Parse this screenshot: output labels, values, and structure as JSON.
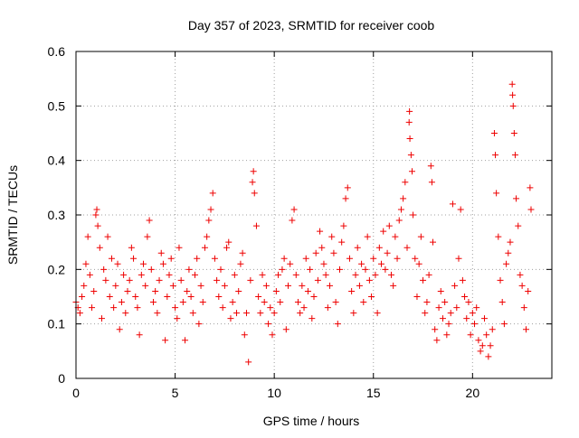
{
  "chart_data": {
    "type": "scatter",
    "title": "Day 357 of 2023, SRMTID for receiver coob",
    "xlabel": "GPS time / hours",
    "ylabel": "SRMTID / TECUs",
    "xlim": [
      0,
      24
    ],
    "ylim": [
      0,
      0.6
    ],
    "x_ticks": [
      0,
      5,
      10,
      15,
      20
    ],
    "x_tick_labels": [
      "0",
      "5",
      "10",
      "15",
      "20"
    ],
    "y_ticks": [
      0,
      0.1,
      0.2,
      0.3,
      0.4,
      0.5,
      0.6
    ],
    "y_tick_labels": [
      "0",
      "0.1",
      "0.2",
      "0.3",
      "0.4",
      "0.5",
      "0.6"
    ],
    "grid": true,
    "marker": "+",
    "color": "#ee0000",
    "series": [
      {
        "name": "SRMTID",
        "points": [
          [
            0.0,
            0.14
          ],
          [
            0.1,
            0.13
          ],
          [
            0.2,
            0.12
          ],
          [
            0.3,
            0.15
          ],
          [
            0.4,
            0.17
          ],
          [
            0.5,
            0.21
          ],
          [
            0.6,
            0.26
          ],
          [
            0.7,
            0.19
          ],
          [
            0.8,
            0.13
          ],
          [
            0.9,
            0.16
          ],
          [
            1.0,
            0.3
          ],
          [
            1.05,
            0.31
          ],
          [
            1.1,
            0.28
          ],
          [
            1.2,
            0.24
          ],
          [
            1.3,
            0.11
          ],
          [
            1.4,
            0.2
          ],
          [
            1.5,
            0.18
          ],
          [
            1.6,
            0.26
          ],
          [
            1.7,
            0.15
          ],
          [
            1.8,
            0.22
          ],
          [
            1.9,
            0.13
          ],
          [
            2.0,
            0.17
          ],
          [
            2.1,
            0.21
          ],
          [
            2.2,
            0.09
          ],
          [
            2.3,
            0.14
          ],
          [
            2.4,
            0.19
          ],
          [
            2.5,
            0.12
          ],
          [
            2.6,
            0.16
          ],
          [
            2.7,
            0.18
          ],
          [
            2.8,
            0.24
          ],
          [
            2.9,
            0.22
          ],
          [
            3.0,
            0.15
          ],
          [
            3.1,
            0.13
          ],
          [
            3.2,
            0.08
          ],
          [
            3.3,
            0.19
          ],
          [
            3.4,
            0.21
          ],
          [
            3.5,
            0.17
          ],
          [
            3.6,
            0.26
          ],
          [
            3.7,
            0.29
          ],
          [
            3.8,
            0.2
          ],
          [
            3.9,
            0.14
          ],
          [
            4.0,
            0.16
          ],
          [
            4.1,
            0.12
          ],
          [
            4.2,
            0.18
          ],
          [
            4.3,
            0.23
          ],
          [
            4.4,
            0.21
          ],
          [
            4.5,
            0.07
          ],
          [
            4.6,
            0.15
          ],
          [
            4.7,
            0.19
          ],
          [
            4.8,
            0.22
          ],
          [
            4.9,
            0.17
          ],
          [
            5.0,
            0.13
          ],
          [
            5.1,
            0.11
          ],
          [
            5.2,
            0.24
          ],
          [
            5.3,
            0.18
          ],
          [
            5.4,
            0.14
          ],
          [
            5.5,
            0.07
          ],
          [
            5.6,
            0.16
          ],
          [
            5.7,
            0.2
          ],
          [
            5.8,
            0.15
          ],
          [
            5.9,
            0.12
          ],
          [
            6.0,
            0.19
          ],
          [
            6.1,
            0.22
          ],
          [
            6.2,
            0.1
          ],
          [
            6.3,
            0.17
          ],
          [
            6.4,
            0.14
          ],
          [
            6.5,
            0.24
          ],
          [
            6.6,
            0.26
          ],
          [
            6.7,
            0.29
          ],
          [
            6.8,
            0.31
          ],
          [
            6.9,
            0.34
          ],
          [
            7.0,
            0.22
          ],
          [
            7.1,
            0.18
          ],
          [
            7.2,
            0.15
          ],
          [
            7.3,
            0.2
          ],
          [
            7.4,
            0.13
          ],
          [
            7.5,
            0.17
          ],
          [
            7.6,
            0.24
          ],
          [
            7.7,
            0.25
          ],
          [
            7.8,
            0.11
          ],
          [
            7.9,
            0.14
          ],
          [
            8.0,
            0.19
          ],
          [
            8.1,
            0.12
          ],
          [
            8.2,
            0.16
          ],
          [
            8.3,
            0.21
          ],
          [
            8.4,
            0.23
          ],
          [
            8.5,
            0.08
          ],
          [
            8.6,
            0.12
          ],
          [
            8.7,
            0.03
          ],
          [
            8.8,
            0.18
          ],
          [
            8.9,
            0.36
          ],
          [
            8.95,
            0.38
          ],
          [
            9.0,
            0.34
          ],
          [
            9.1,
            0.28
          ],
          [
            9.2,
            0.15
          ],
          [
            9.3,
            0.12
          ],
          [
            9.4,
            0.19
          ],
          [
            9.5,
            0.14
          ],
          [
            9.6,
            0.17
          ],
          [
            9.7,
            0.1
          ],
          [
            9.8,
            0.13
          ],
          [
            9.9,
            0.08
          ],
          [
            10.0,
            0.12
          ],
          [
            10.1,
            0.16
          ],
          [
            10.2,
            0.19
          ],
          [
            10.3,
            0.14
          ],
          [
            10.4,
            0.2
          ],
          [
            10.5,
            0.22
          ],
          [
            10.6,
            0.09
          ],
          [
            10.7,
            0.17
          ],
          [
            10.8,
            0.21
          ],
          [
            10.9,
            0.29
          ],
          [
            11.0,
            0.31
          ],
          [
            11.1,
            0.19
          ],
          [
            11.2,
            0.14
          ],
          [
            11.3,
            0.12
          ],
          [
            11.4,
            0.17
          ],
          [
            11.5,
            0.13
          ],
          [
            11.6,
            0.22
          ],
          [
            11.7,
            0.16
          ],
          [
            11.8,
            0.2
          ],
          [
            11.9,
            0.11
          ],
          [
            12.0,
            0.15
          ],
          [
            12.1,
            0.23
          ],
          [
            12.2,
            0.18
          ],
          [
            12.3,
            0.27
          ],
          [
            12.4,
            0.24
          ],
          [
            12.5,
            0.21
          ],
          [
            12.6,
            0.19
          ],
          [
            12.7,
            0.13
          ],
          [
            12.8,
            0.17
          ],
          [
            12.9,
            0.26
          ],
          [
            13.0,
            0.23
          ],
          [
            13.1,
            0.14
          ],
          [
            13.2,
            0.1
          ],
          [
            13.3,
            0.2
          ],
          [
            13.4,
            0.25
          ],
          [
            13.5,
            0.28
          ],
          [
            13.6,
            0.33
          ],
          [
            13.7,
            0.35
          ],
          [
            13.8,
            0.22
          ],
          [
            13.9,
            0.16
          ],
          [
            14.0,
            0.12
          ],
          [
            14.1,
            0.19
          ],
          [
            14.2,
            0.24
          ],
          [
            14.3,
            0.17
          ],
          [
            14.4,
            0.21
          ],
          [
            14.5,
            0.14
          ],
          [
            14.6,
            0.2
          ],
          [
            14.7,
            0.26
          ],
          [
            14.8,
            0.18
          ],
          [
            14.9,
            0.15
          ],
          [
            15.0,
            0.22
          ],
          [
            15.1,
            0.19
          ],
          [
            15.2,
            0.12
          ],
          [
            15.3,
            0.24
          ],
          [
            15.4,
            0.21
          ],
          [
            15.5,
            0.27
          ],
          [
            15.6,
            0.2
          ],
          [
            15.7,
            0.23
          ],
          [
            15.8,
            0.28
          ],
          [
            15.9,
            0.19
          ],
          [
            16.0,
            0.17
          ],
          [
            16.1,
            0.26
          ],
          [
            16.2,
            0.22
          ],
          [
            16.3,
            0.29
          ],
          [
            16.4,
            0.31
          ],
          [
            16.5,
            0.33
          ],
          [
            16.6,
            0.36
          ],
          [
            16.7,
            0.24
          ],
          [
            16.8,
            0.47
          ],
          [
            16.82,
            0.49
          ],
          [
            16.84,
            0.44
          ],
          [
            16.9,
            0.41
          ],
          [
            16.95,
            0.38
          ],
          [
            17.0,
            0.3
          ],
          [
            17.1,
            0.22
          ],
          [
            17.2,
            0.15
          ],
          [
            17.3,
            0.21
          ],
          [
            17.4,
            0.26
          ],
          [
            17.5,
            0.18
          ],
          [
            17.6,
            0.12
          ],
          [
            17.7,
            0.14
          ],
          [
            17.8,
            0.19
          ],
          [
            17.9,
            0.39
          ],
          [
            17.95,
            0.36
          ],
          [
            18.0,
            0.25
          ],
          [
            18.1,
            0.09
          ],
          [
            18.2,
            0.07
          ],
          [
            18.3,
            0.13
          ],
          [
            18.4,
            0.16
          ],
          [
            18.5,
            0.11
          ],
          [
            18.6,
            0.14
          ],
          [
            18.7,
            0.08
          ],
          [
            18.8,
            0.1
          ],
          [
            18.9,
            0.12
          ],
          [
            19.0,
            0.32
          ],
          [
            19.1,
            0.17
          ],
          [
            19.2,
            0.13
          ],
          [
            19.3,
            0.22
          ],
          [
            19.4,
            0.31
          ],
          [
            19.5,
            0.18
          ],
          [
            19.6,
            0.15
          ],
          [
            19.7,
            0.11
          ],
          [
            19.8,
            0.14
          ],
          [
            19.9,
            0.08
          ],
          [
            20.0,
            0.12
          ],
          [
            20.1,
            0.1
          ],
          [
            20.2,
            0.13
          ],
          [
            20.3,
            0.07
          ],
          [
            20.4,
            0.05
          ],
          [
            20.5,
            0.06
          ],
          [
            20.6,
            0.11
          ],
          [
            20.7,
            0.08
          ],
          [
            20.8,
            0.04
          ],
          [
            20.9,
            0.06
          ],
          [
            21.0,
            0.09
          ],
          [
            21.1,
            0.45
          ],
          [
            21.15,
            0.41
          ],
          [
            21.2,
            0.34
          ],
          [
            21.3,
            0.26
          ],
          [
            21.4,
            0.18
          ],
          [
            21.5,
            0.14
          ],
          [
            21.6,
            0.1
          ],
          [
            21.7,
            0.21
          ],
          [
            21.8,
            0.23
          ],
          [
            21.9,
            0.25
          ],
          [
            22.0,
            0.54
          ],
          [
            22.02,
            0.52
          ],
          [
            22.05,
            0.5
          ],
          [
            22.1,
            0.45
          ],
          [
            22.15,
            0.41
          ],
          [
            22.2,
            0.33
          ],
          [
            22.3,
            0.28
          ],
          [
            22.4,
            0.19
          ],
          [
            22.5,
            0.17
          ],
          [
            22.6,
            0.13
          ],
          [
            22.7,
            0.09
          ],
          [
            22.8,
            0.16
          ],
          [
            22.9,
            0.35
          ],
          [
            22.95,
            0.31
          ]
        ]
      }
    ]
  }
}
